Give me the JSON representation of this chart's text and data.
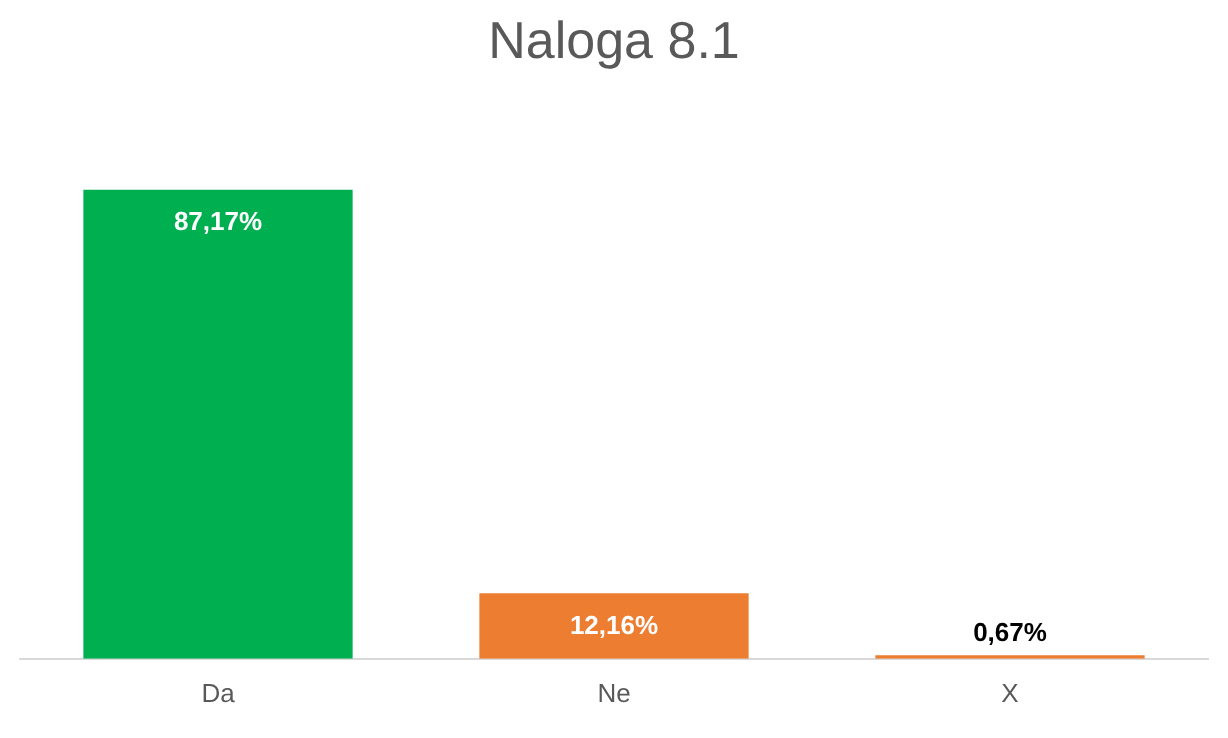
{
  "chart_data": {
    "type": "bar",
    "title": "Naloga 8.1",
    "categories": [
      "Da",
      "Ne",
      "X"
    ],
    "values": [
      87.17,
      12.16,
      0.67
    ],
    "colors": [
      "#00b050",
      "#ed7d31",
      "#ed7d31"
    ],
    "value_labels": [
      "87,17%",
      "12,16%",
      "0,67%"
    ],
    "grid": false,
    "legend": false
  }
}
